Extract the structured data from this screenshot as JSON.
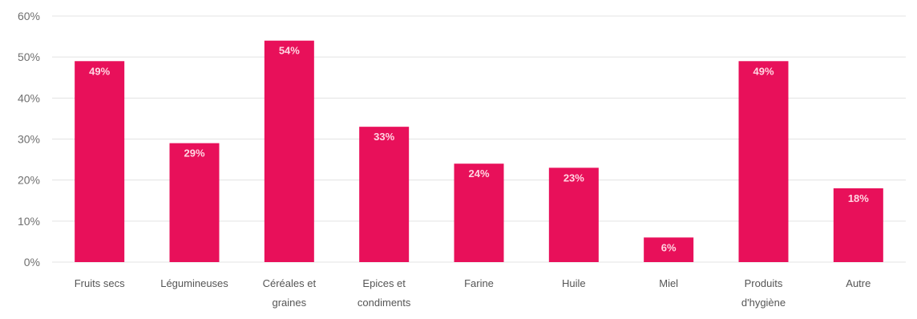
{
  "chart_data": {
    "type": "bar",
    "categories": [
      [
        "Fruits secs"
      ],
      [
        "Légumineuses"
      ],
      [
        "Céréales et",
        "graines"
      ],
      [
        "Epices et",
        "condiments"
      ],
      [
        "Farine"
      ],
      [
        "Huile"
      ],
      [
        "Miel"
      ],
      [
        "Produits",
        "d'hygiène"
      ],
      [
        "Autre"
      ]
    ],
    "values": [
      49,
      29,
      54,
      33,
      24,
      23,
      6,
      49,
      18
    ],
    "value_labels": [
      "49%",
      "29%",
      "54%",
      "33%",
      "24%",
      "23%",
      "6%",
      "49%",
      "18%"
    ],
    "ylim": [
      0,
      60
    ],
    "yticks": [
      "0%",
      "10%",
      "20%",
      "30%",
      "40%",
      "50%",
      "60%"
    ],
    "ytick_values": [
      0,
      10,
      20,
      30,
      40,
      50,
      60
    ],
    "grid": true,
    "bar_color": "#e8105a",
    "title": "",
    "xlabel": "",
    "ylabel": ""
  }
}
